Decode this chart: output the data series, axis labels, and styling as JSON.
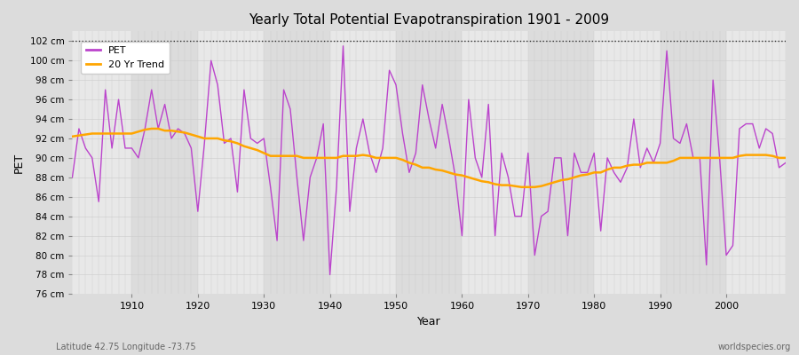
{
  "title": "Yearly Total Potential Evapotranspiration 1901 - 2009",
  "xlabel": "Year",
  "ylabel": "PET",
  "subtitle_left": "Latitude 42.75 Longitude -73.75",
  "subtitle_right": "worldspecies.org",
  "ylim": [
    76,
    103
  ],
  "yticks": [
    76,
    78,
    80,
    82,
    84,
    86,
    88,
    90,
    92,
    94,
    96,
    98,
    100,
    102
  ],
  "pet_color": "#BB44CC",
  "trend_color": "#FFA500",
  "bg_color": "#DCDCDC",
  "plot_bg_color": "#E8E8E8",
  "band_color_light": "#E8E8E8",
  "band_color_dark": "#DCDCDC",
  "dotted_line_y": 102,
  "xlim_left": 1901,
  "xlim_right": 2009,
  "years": [
    1901,
    1902,
    1903,
    1904,
    1905,
    1906,
    1907,
    1908,
    1909,
    1910,
    1911,
    1912,
    1913,
    1914,
    1915,
    1916,
    1917,
    1918,
    1919,
    1920,
    1921,
    1922,
    1923,
    1924,
    1925,
    1926,
    1927,
    1928,
    1929,
    1930,
    1931,
    1932,
    1933,
    1934,
    1935,
    1936,
    1937,
    1938,
    1939,
    1940,
    1941,
    1942,
    1943,
    1944,
    1945,
    1946,
    1947,
    1948,
    1949,
    1950,
    1951,
    1952,
    1953,
    1954,
    1955,
    1956,
    1957,
    1958,
    1959,
    1960,
    1961,
    1962,
    1963,
    1964,
    1965,
    1966,
    1967,
    1968,
    1969,
    1970,
    1971,
    1972,
    1973,
    1974,
    1975,
    1976,
    1977,
    1978,
    1979,
    1980,
    1981,
    1982,
    1983,
    1984,
    1985,
    1986,
    1987,
    1988,
    1989,
    1990,
    1991,
    1992,
    1993,
    1994,
    1995,
    1996,
    1997,
    1998,
    1999,
    2000,
    2001,
    2002,
    2003,
    2004,
    2005,
    2006,
    2007,
    2008,
    2009
  ],
  "pet_values": [
    88.0,
    93.0,
    91.0,
    90.0,
    85.5,
    97.0,
    91.0,
    96.0,
    91.0,
    91.0,
    90.0,
    93.0,
    97.0,
    93.0,
    95.5,
    92.0,
    93.0,
    92.5,
    91.0,
    84.5,
    91.5,
    100.0,
    97.5,
    91.5,
    92.0,
    86.5,
    97.0,
    92.0,
    91.5,
    92.0,
    87.0,
    81.5,
    97.0,
    95.0,
    88.0,
    81.5,
    88.0,
    90.0,
    93.5,
    78.0,
    87.0,
    101.5,
    84.5,
    91.0,
    94.0,
    90.5,
    88.5,
    91.0,
    99.0,
    97.5,
    92.5,
    88.5,
    90.5,
    97.5,
    94.0,
    91.0,
    95.5,
    92.0,
    88.0,
    82.0,
    96.0,
    90.0,
    88.0,
    95.5,
    82.0,
    90.5,
    88.0,
    84.0,
    84.0,
    90.5,
    80.0,
    84.0,
    84.5,
    90.0,
    90.0,
    82.0,
    90.5,
    88.5,
    88.5,
    90.5,
    82.5,
    90.0,
    88.5,
    87.5,
    89.0,
    94.0,
    89.0,
    91.0,
    89.5,
    91.5,
    101.0,
    92.0,
    91.5,
    93.5,
    90.0,
    90.0,
    79.0,
    98.0,
    90.0,
    80.0,
    81.0,
    93.0,
    93.5,
    93.5,
    91.0,
    93.0,
    92.5,
    89.0,
    89.5
  ],
  "trend_years": [
    1901,
    1902,
    1903,
    1904,
    1905,
    1906,
    1907,
    1908,
    1909,
    1910,
    1911,
    1912,
    1913,
    1914,
    1915,
    1916,
    1917,
    1918,
    1919,
    1920,
    1921,
    1922,
    1923,
    1924,
    1925,
    1926,
    1927,
    1928,
    1929,
    1930,
    1931,
    1932,
    1933,
    1934,
    1935,
    1936,
    1937,
    1938,
    1939,
    1940,
    1941,
    1942,
    1943,
    1944,
    1945,
    1946,
    1947,
    1948,
    1949,
    1950,
    1951,
    1952,
    1953,
    1954,
    1955,
    1956,
    1957,
    1958,
    1959,
    1960,
    1961,
    1962,
    1963,
    1964,
    1965,
    1966,
    1967,
    1968,
    1969,
    1970,
    1971,
    1972,
    1973,
    1974,
    1975,
    1976,
    1977,
    1978,
    1979,
    1980,
    1981,
    1982,
    1983,
    1984,
    1985,
    1986,
    1987,
    1988,
    1989,
    1990,
    1991,
    1992,
    1993,
    1994,
    1995,
    1996,
    1997,
    1998,
    1999,
    2000,
    2001,
    2002,
    2003,
    2004,
    2005,
    2006,
    2007,
    2008,
    2009
  ],
  "trend_values": [
    92.2,
    92.3,
    92.4,
    92.5,
    92.5,
    92.5,
    92.5,
    92.5,
    92.5,
    92.5,
    92.7,
    92.9,
    93.0,
    93.0,
    92.8,
    92.8,
    92.7,
    92.6,
    92.4,
    92.2,
    92.0,
    92.0,
    92.0,
    91.8,
    91.7,
    91.5,
    91.2,
    91.0,
    90.8,
    90.5,
    90.2,
    90.2,
    90.2,
    90.2,
    90.2,
    90.0,
    90.0,
    90.0,
    90.0,
    90.0,
    90.0,
    90.2,
    90.2,
    90.2,
    90.3,
    90.2,
    90.0,
    90.0,
    90.0,
    90.0,
    89.8,
    89.5,
    89.3,
    89.0,
    89.0,
    88.8,
    88.7,
    88.5,
    88.3,
    88.2,
    88.0,
    87.8,
    87.6,
    87.5,
    87.3,
    87.2,
    87.2,
    87.1,
    87.0,
    87.0,
    87.0,
    87.1,
    87.3,
    87.5,
    87.7,
    87.8,
    88.0,
    88.2,
    88.3,
    88.5,
    88.5,
    88.8,
    89.0,
    89.0,
    89.2,
    89.3,
    89.3,
    89.5,
    89.5,
    89.5,
    89.5,
    89.7,
    90.0,
    90.0,
    90.0,
    90.0,
    90.0,
    90.0,
    90.0,
    90.0,
    90.0,
    90.2,
    90.3,
    90.3,
    90.3,
    90.3,
    90.2,
    90.0,
    90.0
  ]
}
